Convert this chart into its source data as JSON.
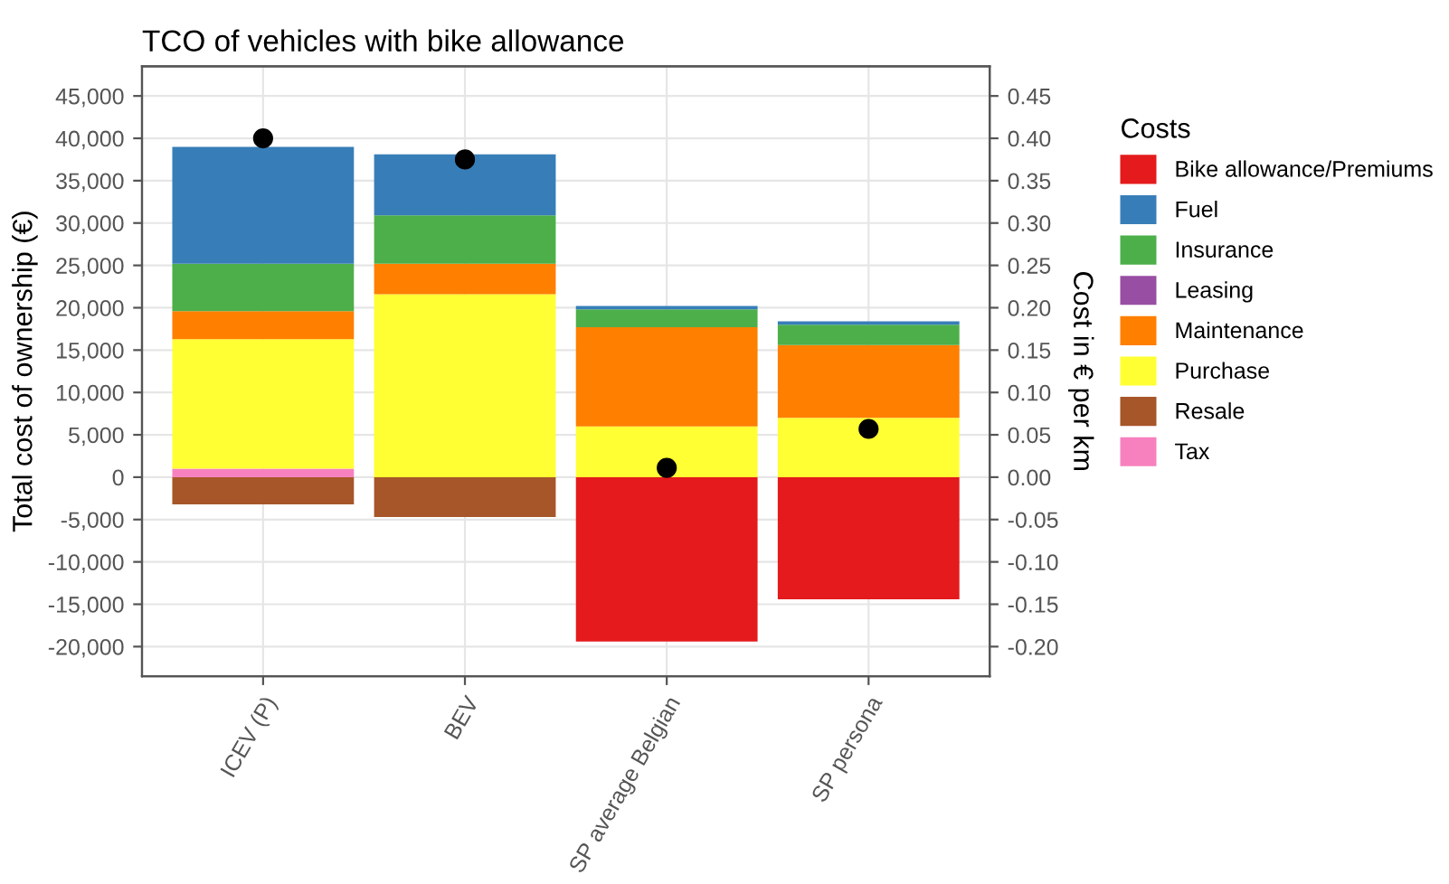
{
  "chart_data": {
    "type": "bar",
    "title": "TCO of vehicles with bike allowance",
    "xlabel": null,
    "ylabel": "Total cost of ownership (€)",
    "y2label": "Cost in € per km",
    "legend_title": "Costs",
    "categories": [
      "ICEV (P)",
      "BEV",
      "SP average Belgian",
      "SP persona"
    ],
    "stacked": true,
    "series": [
      {
        "name": "Tax",
        "color": "#f781bf",
        "values": [
          1000,
          0,
          0,
          0
        ]
      },
      {
        "name": "Resale",
        "color": "#a65628",
        "values": [
          -3200,
          -4700,
          0,
          0
        ]
      },
      {
        "name": "Purchase",
        "color": "#ffff33",
        "values": [
          15300,
          21600,
          6000,
          7000
        ]
      },
      {
        "name": "Maintenance",
        "color": "#ff7f00",
        "values": [
          3300,
          3600,
          11700,
          8600
        ]
      },
      {
        "name": "Leasing",
        "color": "#984ea3",
        "values": [
          0,
          0,
          0,
          0
        ]
      },
      {
        "name": "Insurance",
        "color": "#4daf4a",
        "values": [
          5600,
          5700,
          2100,
          2400
        ]
      },
      {
        "name": "Fuel",
        "color": "#377eb8",
        "values": [
          13800,
          7200,
          400,
          400
        ]
      },
      {
        "name": "Bike allowance/Premiums",
        "color": "#e41a1c",
        "values": [
          0,
          0,
          -19400,
          -14400
        ]
      },
      {
        "type": "scatter",
        "axis": "y2",
        "color": "#000000",
        "x": [
          "ICEV (P)",
          "BEV",
          "SP average Belgian",
          "SP persona"
        ],
        "values": [
          0.4,
          0.375,
          0.011,
          0.057
        ]
      }
    ],
    "ylim": [
      -23500,
      48500
    ],
    "yticks": [
      {
        "value": -20000,
        "label": "-20,000"
      },
      {
        "value": -15000,
        "label": "-15,000"
      },
      {
        "value": -10000,
        "label": "-10,000"
      },
      {
        "value": -5000,
        "label": "-5,000"
      },
      0,
      {
        "value": 5000,
        "label": "5,000"
      },
      {
        "value": 10000,
        "label": "10,000"
      },
      {
        "value": 15000,
        "label": "15,000"
      },
      {
        "value": 20000,
        "label": "20,000"
      },
      {
        "value": 25000,
        "label": "25,000"
      },
      {
        "value": 30000,
        "label": "30,000"
      },
      {
        "value": 35000,
        "label": "35,000"
      },
      {
        "value": 40000,
        "label": "40,000"
      },
      {
        "value": 45000,
        "label": "45,000"
      }
    ],
    "y2lim": [
      -0.235,
      0.485
    ],
    "y2ticks": [
      {
        "value": -0.2,
        "label": "-0.20"
      },
      {
        "value": -0.15,
        "label": "-0.15"
      },
      {
        "value": -0.1,
        "label": "-0.10"
      },
      {
        "value": -0.05,
        "label": "-0.05"
      },
      {
        "value": 0,
        "label": "0.00"
      },
      {
        "value": 0.05,
        "label": "0.05"
      },
      {
        "value": 0.1,
        "label": "0.10"
      },
      {
        "value": 0.15,
        "label": "0.15"
      },
      {
        "value": 0.2,
        "label": "0.20"
      },
      {
        "value": 0.25,
        "label": "0.25"
      },
      {
        "value": 0.3,
        "label": "0.30"
      },
      {
        "value": 0.35,
        "label": "0.35"
      },
      {
        "value": 0.4,
        "label": "0.40"
      },
      {
        "value": 0.45,
        "label": "0.45"
      }
    ],
    "grid": true,
    "legend": "right",
    "marker": "circle"
  }
}
